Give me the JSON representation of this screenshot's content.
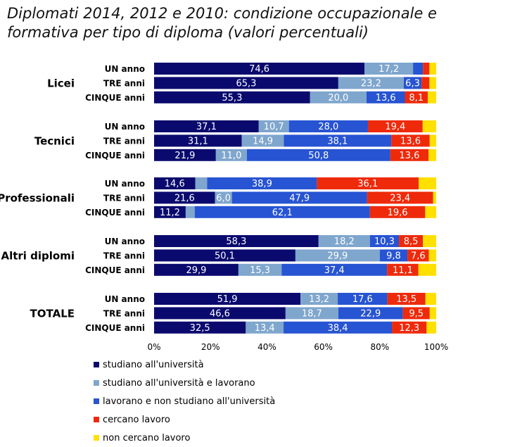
{
  "chart_data": {
    "type": "bar",
    "stacked": true,
    "orientation": "horizontal",
    "title": "Diplomati 2014, 2012 e 2010: condizione occupazionale e formativa per tipo di diploma (valori percentuali)",
    "xlim": [
      0,
      100
    ],
    "x_ticks": [
      "0%",
      "20%",
      "40%",
      "60%",
      "80%",
      "100%"
    ],
    "legend_position": "bottom",
    "series": [
      {
        "name": "studiano all'università",
        "color": "#0a0a6e"
      },
      {
        "name": "studiano all'università e lavorano",
        "color": "#7fa6cd"
      },
      {
        "name": "lavorano e non studiano all'università",
        "color": "#2754d2"
      },
      {
        "name": "cercano lavoro",
        "color": "#ee2a0b"
      },
      {
        "name": "non cercano lavoro",
        "color": "#ffe000"
      }
    ],
    "groups": [
      {
        "name": "Licei",
        "rows": [
          {
            "label": "UN anno",
            "values": [
              74.6,
              17.2,
              3.5,
              2.3,
              2.4
            ],
            "labels": [
              "74,6",
              "17,2",
              "",
              "",
              ""
            ]
          },
          {
            "label": "TRE anni",
            "values": [
              65.3,
              23.2,
              6.3,
              2.8,
              2.4
            ],
            "labels": [
              "65,3",
              "23,2",
              "6,3",
              "",
              ""
            ]
          },
          {
            "label": "CINQUE anni",
            "values": [
              55.3,
              20.0,
              13.6,
              8.1,
              3.0
            ],
            "labels": [
              "55,3",
              "20,0",
              "13,6",
              "8,1",
              ""
            ]
          }
        ]
      },
      {
        "name": "Tecnici",
        "rows": [
          {
            "label": "UN anno",
            "values": [
              37.1,
              10.7,
              28.0,
              19.4,
              4.8
            ],
            "labels": [
              "37,1",
              "10,7",
              "28,0",
              "19,4",
              ""
            ]
          },
          {
            "label": "TRE anni",
            "values": [
              31.1,
              14.9,
              38.1,
              13.6,
              2.3
            ],
            "labels": [
              "31,1",
              "14,9",
              "38,1",
              "13,6",
              ""
            ]
          },
          {
            "label": "CINQUE anni",
            "values": [
              21.9,
              11.0,
              50.8,
              13.6,
              2.7
            ],
            "labels": [
              "21,9",
              "11,0",
              "50,8",
              "13,6",
              ""
            ]
          }
        ]
      },
      {
        "name": "Professionali",
        "rows": [
          {
            "label": "UN anno",
            "values": [
              14.6,
              4.2,
              38.9,
              36.1,
              6.2
            ],
            "labels": [
              "14,6",
              "",
              "38,9",
              "36,1",
              ""
            ]
          },
          {
            "label": "TRE anni",
            "values": [
              21.6,
              6.0,
              47.9,
              23.4,
              1.1
            ],
            "labels": [
              "21,6",
              "6,0",
              "47,9",
              "23,4",
              ""
            ]
          },
          {
            "label": "CINQUE anni",
            "values": [
              11.2,
              3.2,
              62.1,
              19.6,
              3.9
            ],
            "labels": [
              "11,2",
              "",
              "62,1",
              "19,6",
              ""
            ]
          }
        ]
      },
      {
        "name": "Altri diplomi",
        "rows": [
          {
            "label": "UN anno",
            "values": [
              58.3,
              18.2,
              10.3,
              8.5,
              4.7
            ],
            "labels": [
              "58,3",
              "18,2",
              "10,3",
              "8,5",
              ""
            ]
          },
          {
            "label": "TRE anni",
            "values": [
              50.1,
              29.9,
              9.8,
              7.6,
              2.6
            ],
            "labels": [
              "50,1",
              "29,9",
              "9,8",
              "7,6",
              ""
            ]
          },
          {
            "label": "CINQUE anni",
            "values": [
              29.9,
              15.3,
              37.4,
              11.1,
              6.3
            ],
            "labels": [
              "29,9",
              "15,3",
              "37,4",
              "11,1",
              ""
            ]
          }
        ]
      },
      {
        "name": "TOTALE",
        "rows": [
          {
            "label": "UN anno",
            "values": [
              51.9,
              13.2,
              17.6,
              13.5,
              3.8
            ],
            "labels": [
              "51,9",
              "13,2",
              "17,6",
              "13,5",
              ""
            ]
          },
          {
            "label": "TRE anni",
            "values": [
              46.6,
              18.7,
              22.9,
              9.5,
              2.3
            ],
            "labels": [
              "46,6",
              "18,7",
              "22,9",
              "9,5",
              ""
            ]
          },
          {
            "label": "CINQUE anni",
            "values": [
              32.5,
              13.4,
              38.4,
              12.3,
              3.4
            ],
            "labels": [
              "32,5",
              "13,4",
              "38,4",
              "12,3",
              ""
            ]
          }
        ]
      }
    ]
  }
}
